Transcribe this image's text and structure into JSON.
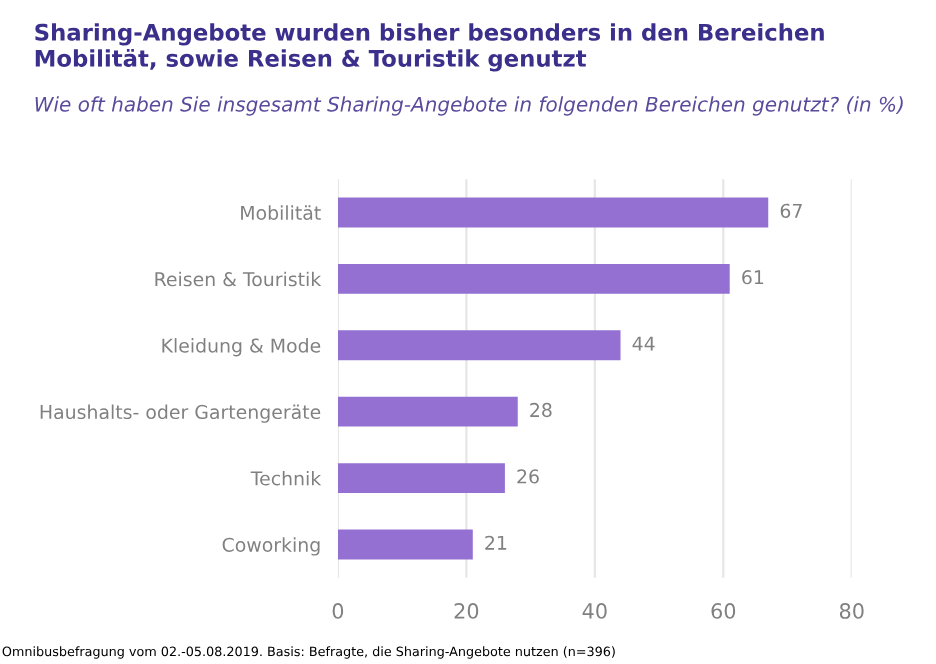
{
  "chart_data": {
    "type": "bar",
    "orientation": "horizontal",
    "title": "Sharing-Angebote wurden bisher besonders in den Bereichen Mobilität, sowie Reisen & Touristik genutzt",
    "subtitle": "Wie oft haben Sie insgesamt Sharing-Angebote in folgenden Bereichen genutzt? (in %)",
    "categories": [
      "Mobilität",
      "Reisen & Touristik",
      "Kleidung & Mode",
      "Haushalts- oder Gartengeräte",
      "Technik",
      "Coworking"
    ],
    "values": [
      67,
      61,
      44,
      28,
      26,
      21
    ],
    "color": "#9370d2",
    "xlim": [
      0,
      80
    ],
    "xticks": [
      0,
      20,
      40,
      60,
      80
    ],
    "grid": "x",
    "data_labels": true,
    "annotations": [
      "Omnibusbefragung vom 02.-05.08.2019. Basis: Befragte, die Sharing-Angebote nutzen (n=396)"
    ]
  }
}
